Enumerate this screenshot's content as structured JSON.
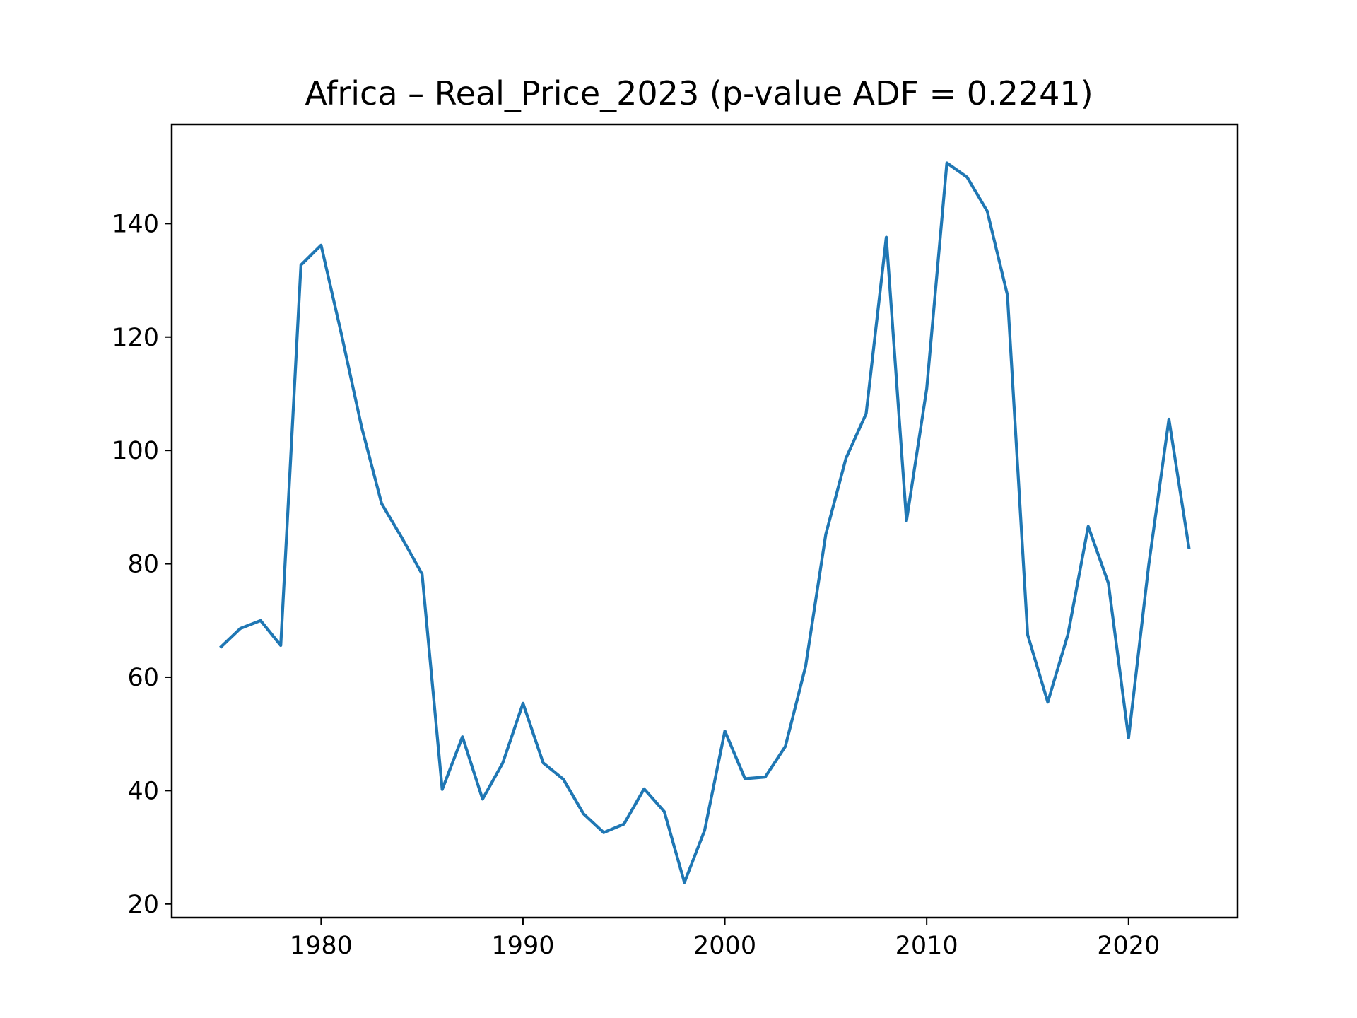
{
  "chart_data": {
    "type": "line",
    "title": "Africa – Real_Price_2023 (p-value ADF = 0.2241)",
    "xlabel": "",
    "ylabel": "",
    "xlim": [
      1972.6,
      2025.4
    ],
    "ylim": [
      17.6,
      157.5
    ],
    "xticks": [
      1980,
      1990,
      2000,
      2010,
      2020
    ],
    "yticks": [
      20,
      40,
      60,
      80,
      100,
      120,
      140
    ],
    "grid": false,
    "legend": "none",
    "series": [
      {
        "color": "#1f77b4",
        "x": [
          1975,
          1976,
          1977,
          1978,
          1979,
          1980,
          1981,
          1982,
          1983,
          1984,
          1985,
          1986,
          1987,
          1988,
          1989,
          1990,
          1991,
          1992,
          1993,
          1994,
          1995,
          1996,
          1997,
          1998,
          1999,
          2000,
          2001,
          2002,
          2003,
          2004,
          2005,
          2006,
          2007,
          2008,
          2009,
          2010,
          2011,
          2012,
          2013,
          2014,
          2015,
          2016,
          2017,
          2018,
          2019,
          2020,
          2021,
          2022,
          2023
        ],
        "values": [
          65.2,
          68.6,
          70.0,
          65.6,
          132.7,
          136.2,
          120.6,
          104.2,
          90.6,
          84.6,
          78.2,
          40.2,
          49.5,
          38.5,
          44.9,
          55.4,
          44.9,
          42.0,
          35.9,
          32.6,
          34.1,
          40.3,
          36.3,
          23.8,
          33.0,
          50.5,
          42.1,
          42.4,
          47.8,
          61.9,
          85.2,
          98.6,
          106.5,
          137.6,
          87.6,
          110.9,
          150.7,
          148.2,
          142.2,
          127.4,
          67.5,
          55.6,
          67.6,
          86.6,
          76.6,
          49.3,
          79.8,
          105.5,
          82.6
        ]
      }
    ]
  }
}
